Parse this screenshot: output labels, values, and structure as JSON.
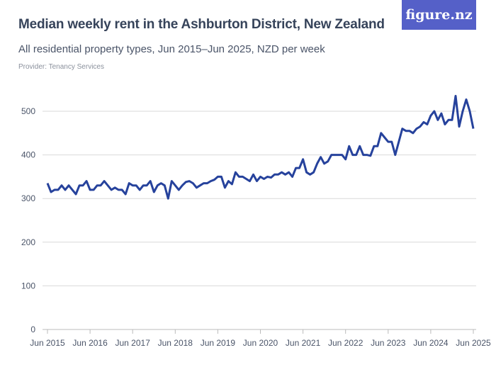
{
  "header": {
    "title": "Median weekly rent in the Ashburton District, New Zealand",
    "subtitle": "All residential property types, Jun 2015–Jun 2025, NZD per week",
    "provider": "Provider: Tenancy Services",
    "logo_text": "figure.nz"
  },
  "colors": {
    "line": "#26429c",
    "logo_bg": "#5560c8",
    "grid": "#d9d9d9",
    "text": "#36435a"
  },
  "chart_data": {
    "type": "line",
    "title": "Median weekly rent in the Ashburton District, New Zealand",
    "subtitle": "All residential property types, Jun 2015–Jun 2025, NZD per week",
    "x_start": "Jun 2015",
    "x_end": "Jun 2025",
    "x_interval": "month",
    "x_tick_labels": [
      "Jun 2015",
      "Jun 2016",
      "Jun 2017",
      "Jun 2018",
      "Jun 2019",
      "Jun 2020",
      "Jun 2021",
      "Jun 2022",
      "Jun 2023",
      "Jun 2024",
      "Jun 2025"
    ],
    "y_ticks": [
      0,
      100,
      200,
      300,
      400,
      500
    ],
    "ylim": [
      0,
      550
    ],
    "grid": true,
    "legend": "none",
    "values": [
      335,
      315,
      320,
      320,
      330,
      320,
      330,
      320,
      310,
      330,
      330,
      340,
      320,
      320,
      330,
      330,
      340,
      330,
      320,
      325,
      320,
      320,
      310,
      335,
      330,
      330,
      320,
      330,
      330,
      340,
      315,
      330,
      335,
      330,
      300,
      340,
      330,
      320,
      330,
      338,
      340,
      335,
      325,
      330,
      335,
      335,
      340,
      343,
      350,
      350,
      325,
      340,
      333,
      360,
      350,
      350,
      345,
      340,
      355,
      340,
      350,
      345,
      350,
      348,
      355,
      355,
      360,
      355,
      360,
      350,
      370,
      370,
      390,
      360,
      355,
      360,
      380,
      395,
      380,
      385,
      400,
      400,
      400,
      400,
      390,
      420,
      400,
      400,
      420,
      400,
      400,
      398,
      420,
      420,
      450,
      440,
      430,
      430,
      400,
      430,
      460,
      455,
      455,
      450,
      460,
      465,
      475,
      470,
      490,
      500,
      480,
      495,
      470,
      480,
      480,
      535,
      465,
      500,
      527,
      500,
      460
    ]
  }
}
